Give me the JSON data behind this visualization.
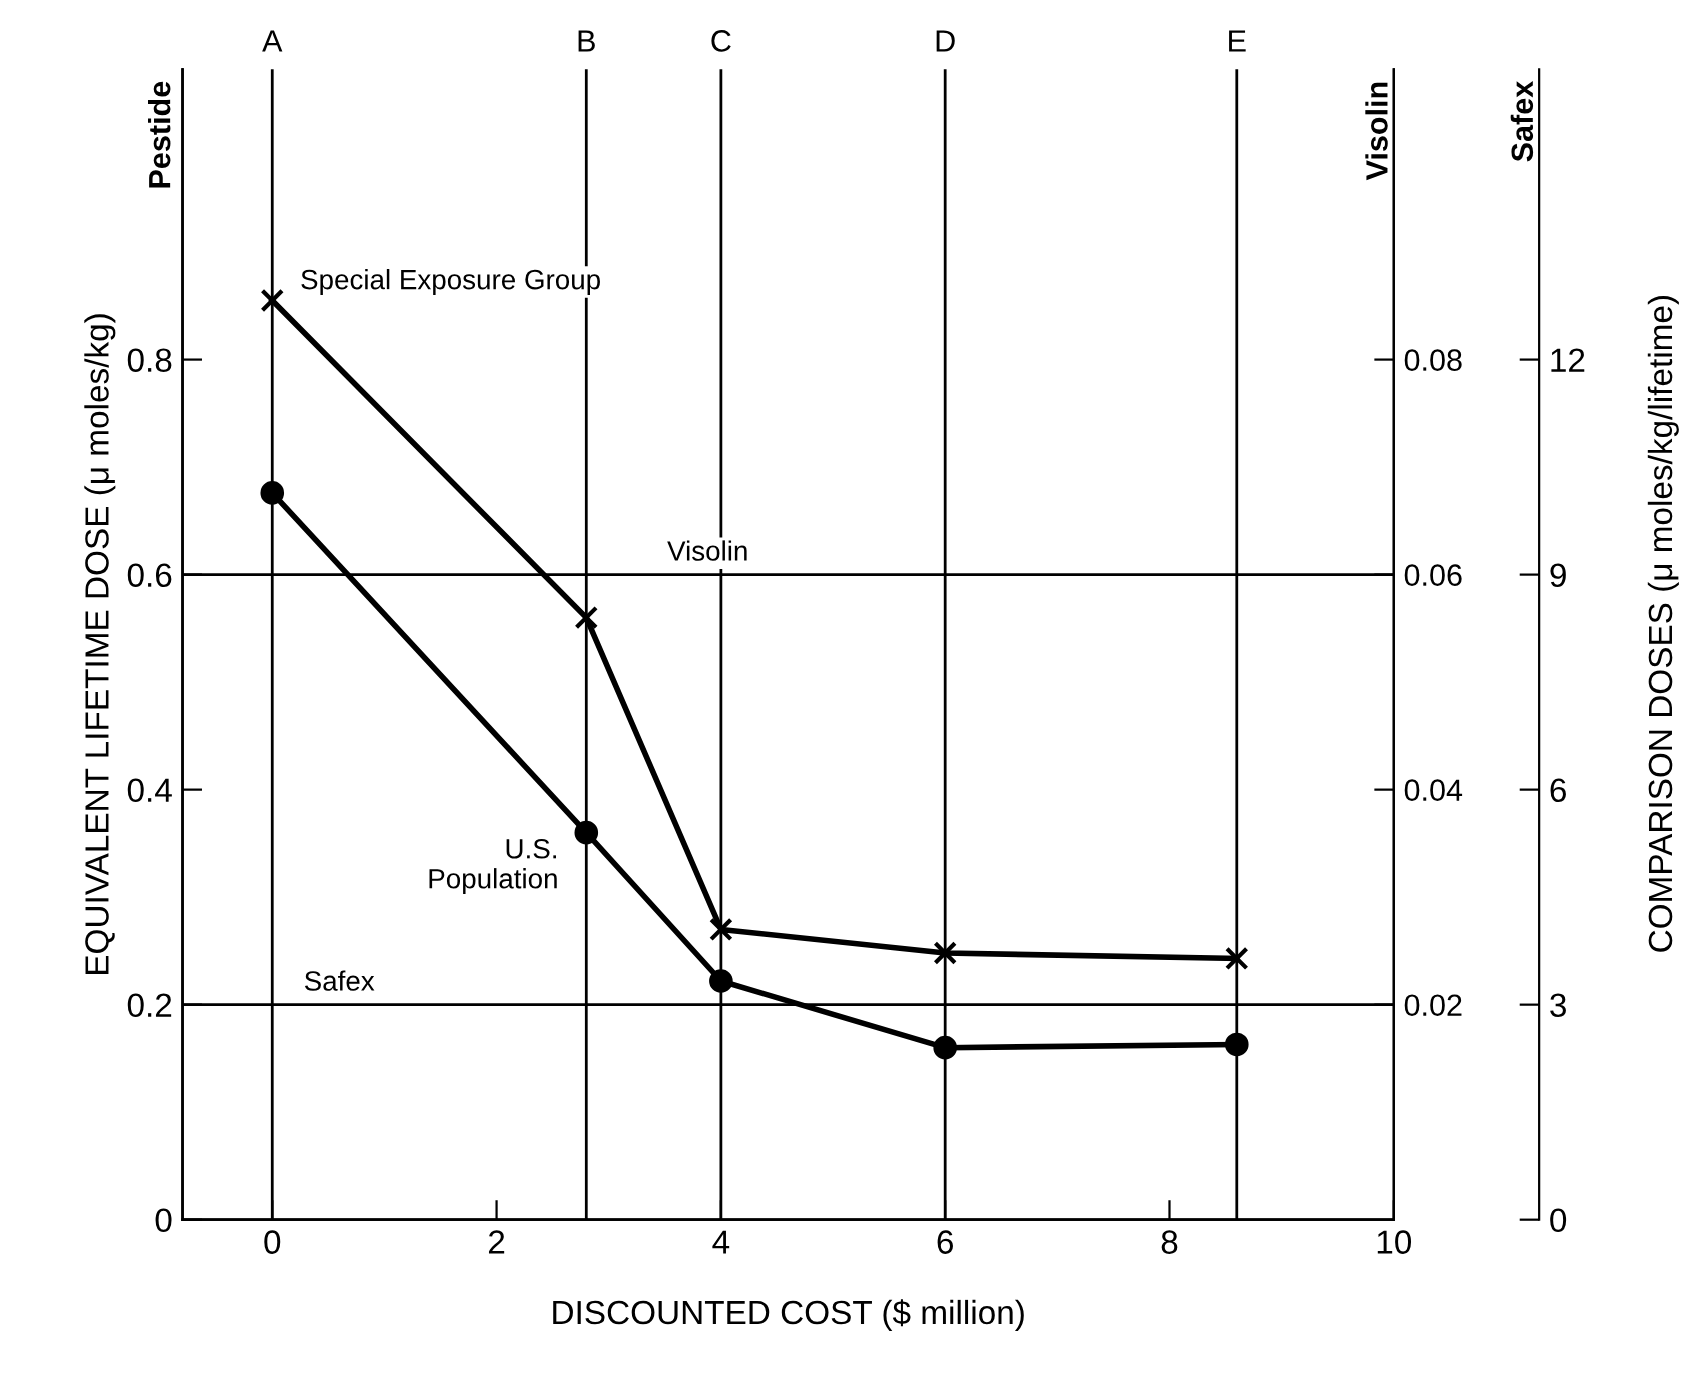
{
  "chart_data": {
    "type": "line",
    "xlabel": "DISCOUNTED COST ($ million)",
    "ylabel": "EQUIVALENT LIFETIME DOSE (μ moles/kg)",
    "y2label": "Visolin",
    "y3label": "Safex",
    "x": [
      0,
      2.8,
      4,
      6,
      8.6
    ],
    "series": [
      {
        "name": "Special Exposure Group",
        "color": "#000000",
        "marker": "cross",
        "values": [
          0.855,
          0.56,
          0.27,
          0.248,
          0.243
        ]
      },
      {
        "name": "U.S. Population",
        "color": "#000000",
        "marker": "circle",
        "values": [
          0.676,
          0.36,
          0.222,
          0.16,
          0.163
        ]
      }
    ],
    "xlim": [
      -0.8,
      10
    ],
    "xticks": [
      0,
      2,
      4,
      6,
      8,
      10
    ],
    "ylim": [
      0,
      1.07
    ],
    "yticks": [
      0,
      0.2,
      0.4,
      0.6,
      0.8
    ],
    "y2lim": [
      0,
      0.107
    ],
    "y2ticks": [
      0.02,
      0.04,
      0.06,
      0.08
    ],
    "y3lim": [
      0,
      16.05
    ],
    "y3ticks": [
      0,
      3,
      6,
      9,
      12
    ],
    "ref_lines": [
      {
        "axis": "x",
        "value": 0,
        "label": "A"
      },
      {
        "axis": "x",
        "value": 2.8,
        "label": "B"
      },
      {
        "axis": "x",
        "value": 4,
        "label": "C"
      },
      {
        "axis": "x",
        "value": 6,
        "label": "D"
      },
      {
        "axis": "x",
        "value": 8.6,
        "label": "E"
      },
      {
        "axis": "y",
        "value": 0.6,
        "label": "Visolin"
      },
      {
        "axis": "y",
        "value": 0.2,
        "label": "Safex"
      }
    ],
    "annotations": [
      "Pestide",
      "COMPARISON DOSES (μ moles/kg/lifetime)"
    ],
    "line_style": "solid",
    "legend": false,
    "grid": false
  }
}
